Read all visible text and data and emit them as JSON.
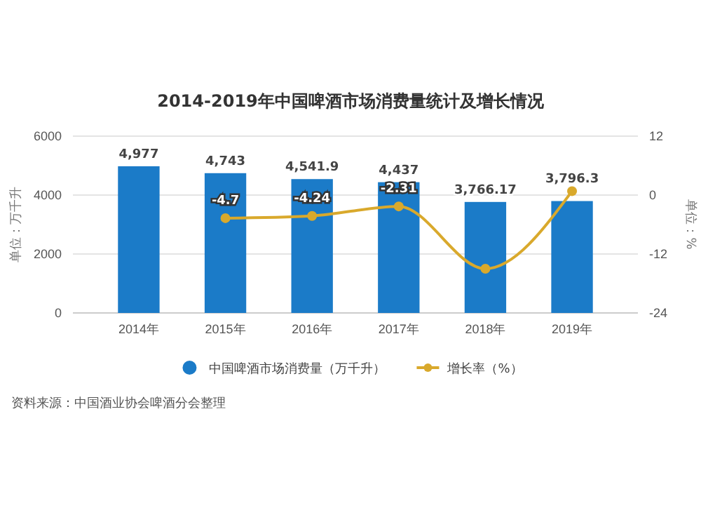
{
  "chart_data": {
    "type": "bar",
    "title": "2014-2019年中国啤酒市场消费量统计及增长情况",
    "categories": [
      "2014年",
      "2015年",
      "2016年",
      "2017年",
      "2018年",
      "2019年"
    ],
    "series": [
      {
        "name": "中国啤酒市场消费量（万千升）",
        "color": "#1b7bc8",
        "values": [
          4977,
          4743,
          4541.9,
          4437,
          3766.17,
          3796.3
        ],
        "value_labels": [
          "4,977",
          "4,743",
          "4,541.9",
          "4,437",
          "3,766.17",
          "3,796.3"
        ]
      },
      {
        "name": "增长率（%）",
        "type": "line",
        "axis": "y2",
        "color": "#d9a92c",
        "values": [
          null,
          -4.7,
          -4.24,
          -2.31,
          -15,
          0.8
        ],
        "value_labels": [
          null,
          "-4.7",
          "-4.24",
          "-2.31",
          null,
          null
        ]
      }
    ],
    "ylabel": "单位：万千升",
    "y2label": "单位：%",
    "ylim": [
      0,
      6000
    ],
    "yticks": [
      0,
      2000,
      4000,
      6000
    ],
    "y2lim": [
      -24,
      12
    ],
    "y2ticks": [
      -24,
      -12,
      0,
      12
    ],
    "grid": "y",
    "legend": "bottom",
    "marker": "circle",
    "annotations": [
      "资料来源：中国酒业协会啤酒分会整理"
    ]
  }
}
